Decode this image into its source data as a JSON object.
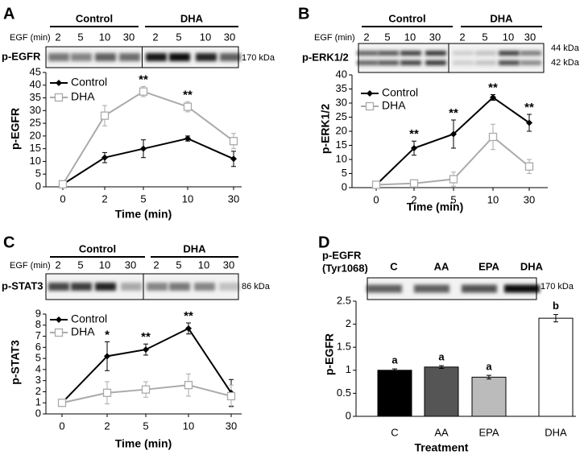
{
  "chart_data": [
    {
      "type": "line",
      "panel": "A",
      "blot": {
        "groups": [
          "Control",
          "DHA"
        ],
        "lane_title": "EGF (min)",
        "lanes": [
          "2",
          "5",
          "10",
          "30",
          "2",
          "5",
          "10",
          "30"
        ],
        "label": [
          "p-EGFR"
        ],
        "marker": [
          "170 kDa"
        ]
      },
      "categories": [
        "0",
        "2",
        "5",
        "10",
        "30"
      ],
      "x_label": "Time (min)",
      "y_label": "p-EGFR",
      "ylim": [
        0,
        45
      ],
      "yticks": [
        0,
        5,
        10,
        15,
        20,
        25,
        30,
        35,
        40,
        45
      ],
      "series": [
        {
          "name": "Control",
          "color": "#000000",
          "marker": "diamond",
          "values": [
            1,
            11.5,
            15,
            19,
            11
          ],
          "errors": [
            0.5,
            2,
            3.5,
            1,
            3
          ]
        },
        {
          "name": "DHA",
          "color": "#aaaaaa",
          "marker": "square",
          "values": [
            1,
            28,
            37.5,
            31.5,
            18
          ],
          "errors": [
            0.5,
            4,
            2,
            2,
            3
          ]
        }
      ],
      "annotations": [
        {
          "text": "**",
          "series": 1,
          "point": 2
        },
        {
          "text": "**",
          "series": 1,
          "point": 3
        }
      ]
    },
    {
      "type": "line",
      "panel": "B",
      "blot": {
        "groups": [
          "Control",
          "DHA"
        ],
        "lane_title": "EGF (min)",
        "lanes": [
          "2",
          "5",
          "10",
          "30",
          "2",
          "5",
          "10",
          "30"
        ],
        "label": [
          "p-ERK1/2"
        ],
        "marker": [
          "44 kDa",
          "42 kDa"
        ]
      },
      "categories": [
        "0",
        "2",
        "5",
        "10",
        "30"
      ],
      "x_label": "Time (min)",
      "y_label": "p-ERK1/2",
      "ylim": [
        0,
        40
      ],
      "yticks": [
        0,
        5,
        10,
        15,
        20,
        25,
        30,
        35,
        40
      ],
      "series": [
        {
          "name": "Control",
          "color": "#000000",
          "marker": "diamond",
          "values": [
            1,
            14,
            19,
            32,
            23
          ],
          "errors": [
            0.5,
            2.5,
            5,
            1,
            3
          ]
        },
        {
          "name": "DHA",
          "color": "#aaaaaa",
          "marker": "square",
          "values": [
            1,
            1.5,
            3,
            18,
            7.5
          ],
          "errors": [
            0.5,
            0.5,
            2.5,
            4.5,
            2.5
          ]
        }
      ],
      "annotations": [
        {
          "text": "**",
          "series": 0,
          "point": 1
        },
        {
          "text": "**",
          "series": 0,
          "point": 2
        },
        {
          "text": "**",
          "series": 0,
          "point": 3
        },
        {
          "text": "**",
          "series": 0,
          "point": 4
        }
      ]
    },
    {
      "type": "line",
      "panel": "C",
      "blot": {
        "groups": [
          "Control",
          "DHA"
        ],
        "lane_title": "EGF (min)",
        "lanes": [
          "2",
          "5",
          "10",
          "30",
          "2",
          "5",
          "10",
          "30"
        ],
        "label": [
          "p-STAT3"
        ],
        "marker": [
          "86 kDa"
        ]
      },
      "categories": [
        "0",
        "2",
        "5",
        "10",
        "30"
      ],
      "x_label": "Time (min)",
      "y_label": "p-STAT3",
      "ylim": [
        0,
        9
      ],
      "yticks": [
        0,
        1,
        2,
        3,
        4,
        5,
        6,
        7,
        8,
        9
      ],
      "series": [
        {
          "name": "Control",
          "color": "#000000",
          "marker": "diamond",
          "values": [
            1,
            5.2,
            5.8,
            7.7,
            1.9
          ],
          "errors": [
            0.1,
            1.3,
            0.5,
            0.5,
            1.2
          ]
        },
        {
          "name": "DHA",
          "color": "#aaaaaa",
          "marker": "square",
          "values": [
            1,
            1.9,
            2.2,
            2.6,
            1.6
          ],
          "errors": [
            0.1,
            1,
            0.7,
            1,
            1
          ]
        }
      ],
      "annotations": [
        {
          "text": "*",
          "series": 0,
          "point": 1
        },
        {
          "text": "**",
          "series": 0,
          "point": 2
        },
        {
          "text": "**",
          "series": 0,
          "point": 3
        }
      ]
    },
    {
      "type": "bar",
      "panel": "D",
      "blot": {
        "lanes": [
          "C",
          "AA",
          "EPA",
          "DHA"
        ],
        "label": [
          "p-EGFR",
          "(Tyr1068)"
        ],
        "marker": [
          "170 kDa"
        ]
      },
      "categories": [
        "C",
        "AA",
        "EPA",
        "DHA"
      ],
      "x_label": "Treatment",
      "y_label": "p-EGFR",
      "ylim": [
        0,
        2.5
      ],
      "yticks": [
        0,
        0.5,
        1,
        1.5,
        2,
        2.5
      ],
      "values": [
        1,
        1.07,
        0.85,
        2.13
      ],
      "errors": [
        0.03,
        0.03,
        0.04,
        0.08
      ],
      "colors": [
        "#000000",
        "#555555",
        "#bbbbbb",
        "#ffffff"
      ],
      "annotations": [
        "a",
        "a",
        "a",
        "b"
      ]
    }
  ]
}
